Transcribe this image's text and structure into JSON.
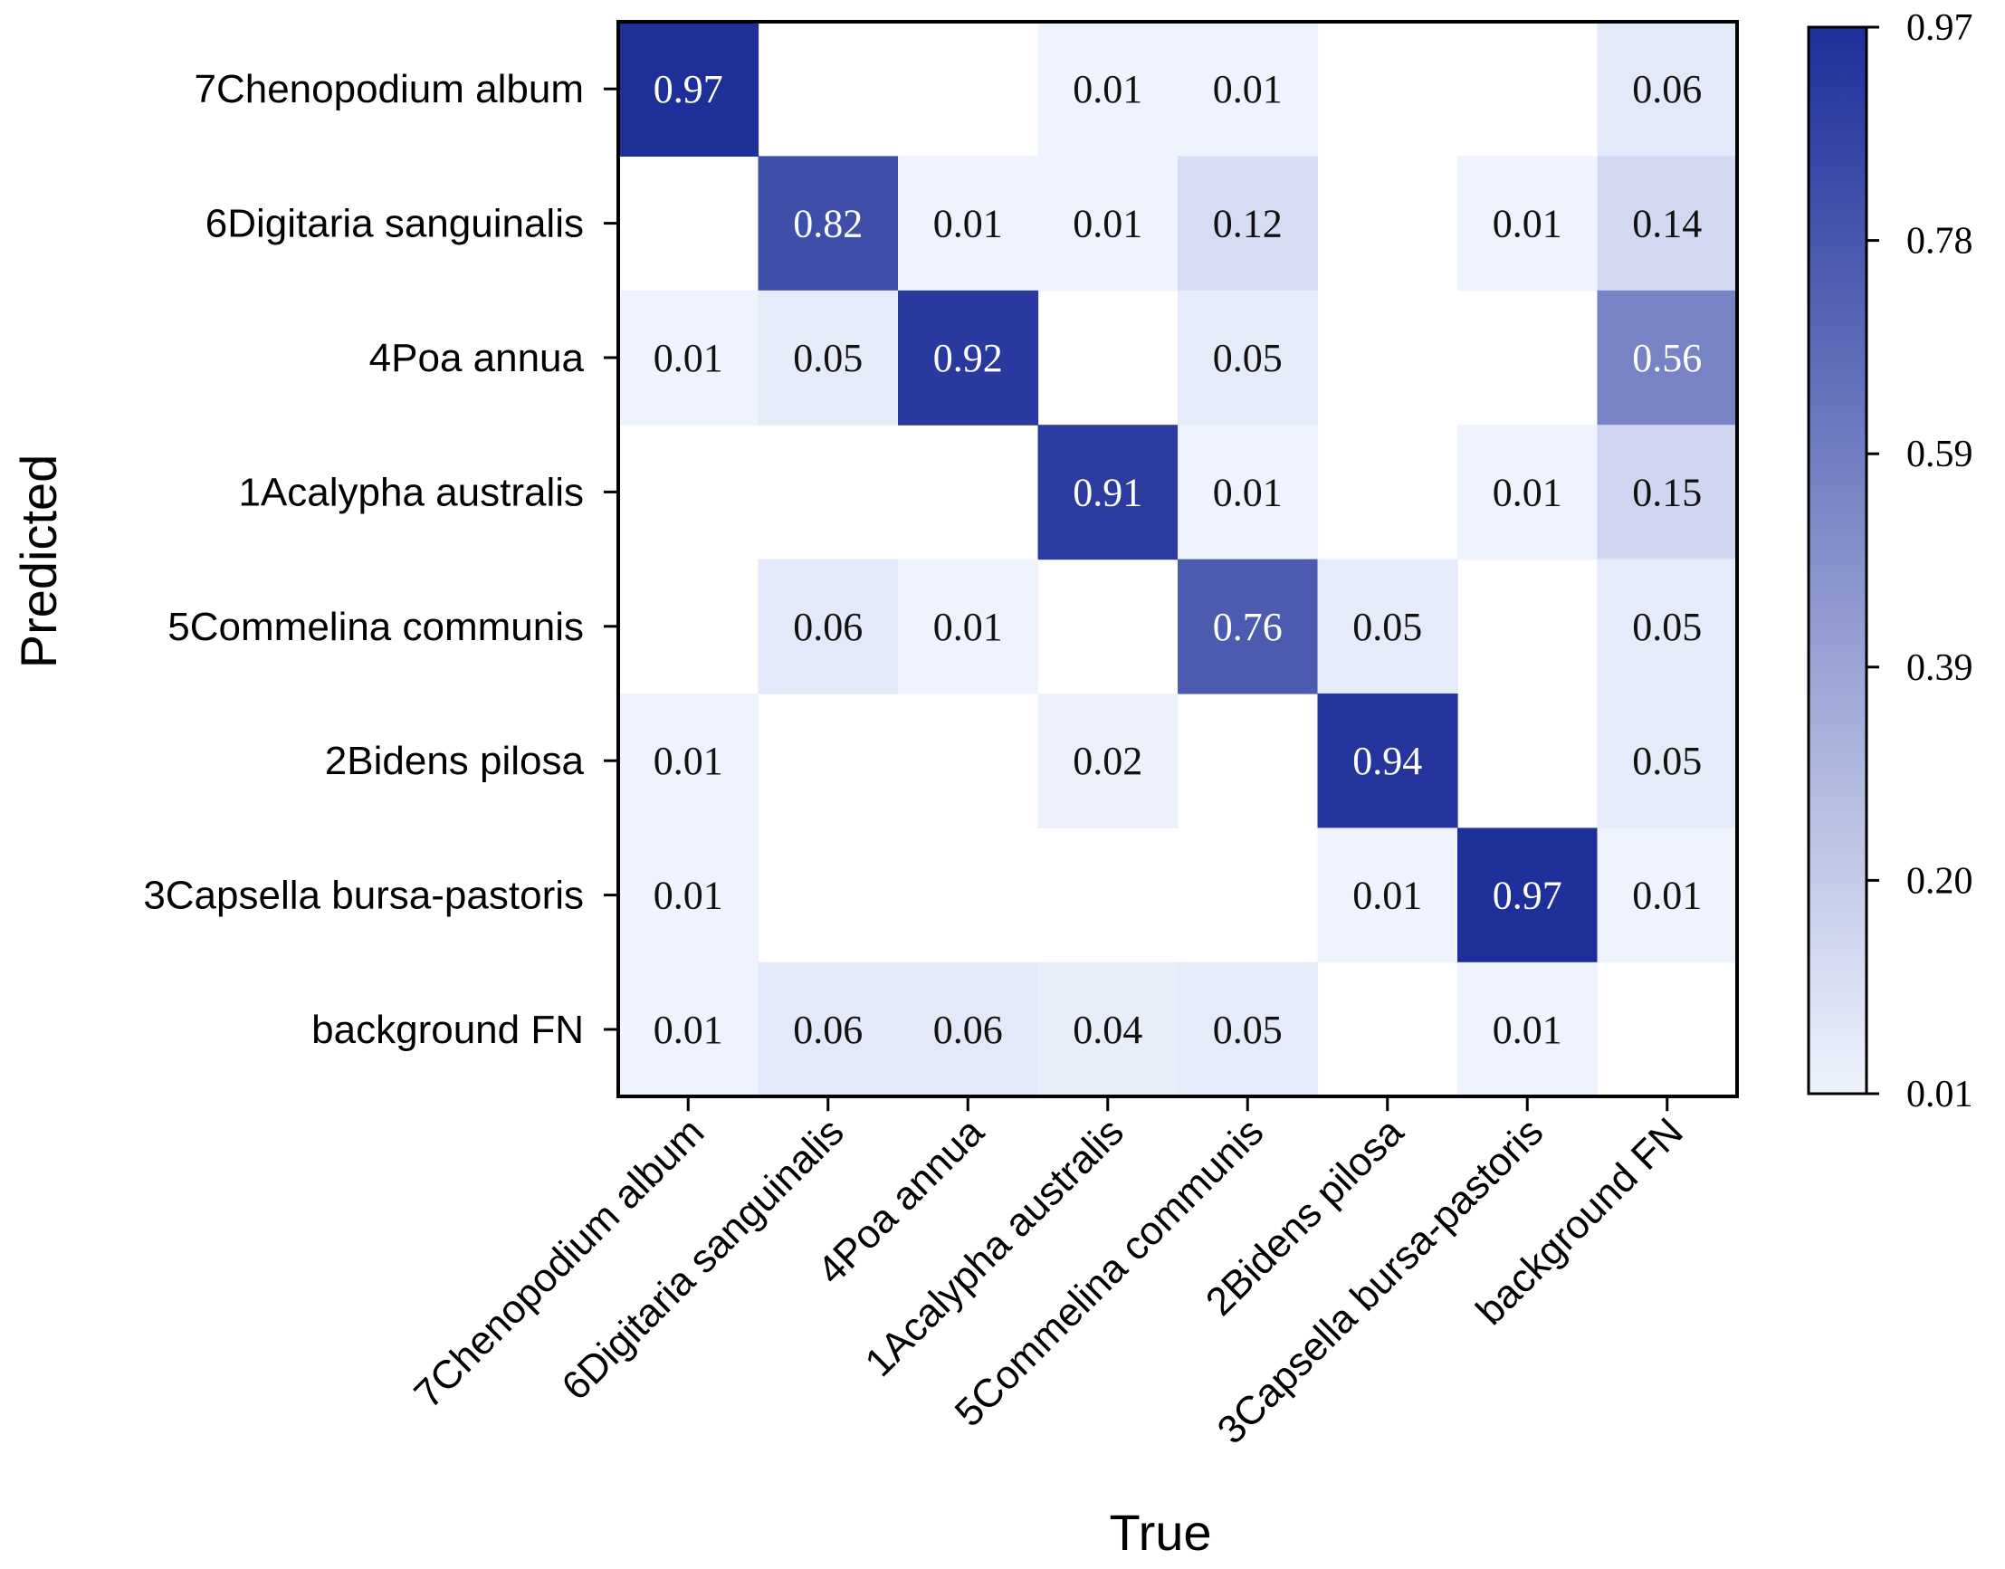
{
  "chart_data": {
    "type": "heatmap",
    "xlabel": "True",
    "ylabel": "Predicted",
    "x_categories": [
      "7Chenopodium album",
      "6Digitaria sanguinalis",
      "4Poa annua",
      "1Acalypha australis",
      "5Commelina communis",
      "2Bidens pilosa",
      "3Capsella bursa-pastoris",
      "background FN"
    ],
    "y_categories": [
      "7Chenopodium album",
      "6Digitaria sanguinalis",
      "4Poa annua",
      "1Acalypha australis",
      "5Commelina communis",
      "2Bidens pilosa",
      "3Capsella bursa-pastoris",
      "background FN"
    ],
    "values": [
      [
        0.97,
        null,
        null,
        0.01,
        0.01,
        null,
        null,
        0.06
      ],
      [
        null,
        0.82,
        0.01,
        0.01,
        0.12,
        null,
        0.01,
        0.14
      ],
      [
        0.01,
        0.05,
        0.92,
        null,
        0.05,
        null,
        null,
        0.56
      ],
      [
        null,
        null,
        null,
        0.91,
        0.01,
        null,
        0.01,
        0.15
      ],
      [
        null,
        0.06,
        0.01,
        null,
        0.76,
        0.05,
        null,
        0.05
      ],
      [
        0.01,
        null,
        null,
        0.02,
        null,
        0.94,
        null,
        0.05
      ],
      [
        0.01,
        null,
        null,
        null,
        null,
        0.01,
        0.97,
        0.01
      ],
      [
        0.01,
        0.06,
        0.06,
        0.04,
        0.05,
        null,
        0.01,
        null
      ]
    ],
    "colorbar": {
      "ticks": [
        "0.97",
        "0.78",
        "0.59",
        "0.39",
        "0.20",
        "0.01"
      ],
      "min": 0.01,
      "max": 0.97
    },
    "colormap": {
      "low": "#eef3fd",
      "high": "#1f2f9a"
    },
    "grid": false
  }
}
